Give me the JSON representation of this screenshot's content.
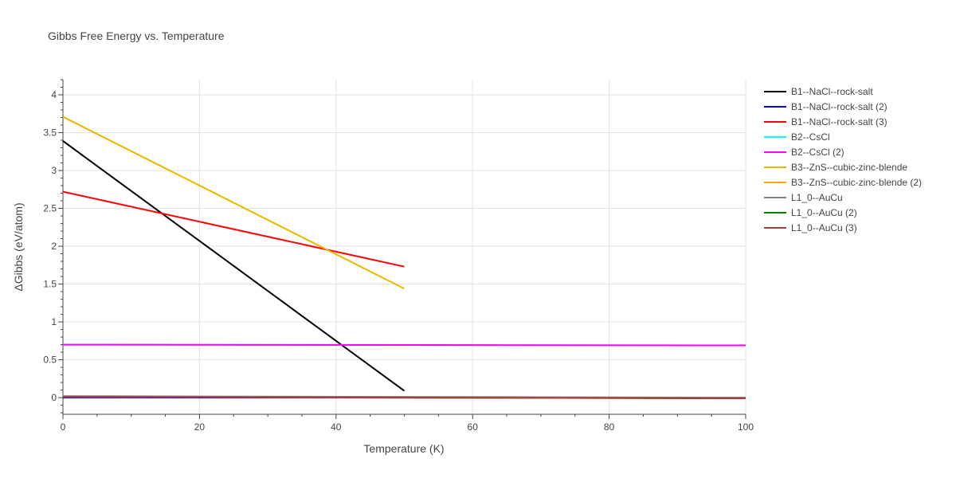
{
  "chart_data": {
    "type": "line",
    "title": "Gibbs Free Energy vs. Temperature",
    "xlabel": "Temperature (K)",
    "ylabel": "ΔGibbs (eV/atom)",
    "xlim": [
      0,
      100
    ],
    "ylim": [
      -0.22,
      4.2
    ],
    "x_ticks": [
      0,
      20,
      40,
      60,
      80,
      100
    ],
    "x_tick_labels": [
      "0",
      "20",
      "40",
      "60",
      "80",
      "100"
    ],
    "y_ticks": [
      0,
      0.5,
      1,
      1.5,
      2,
      2.5,
      3,
      3.5,
      4
    ],
    "y_tick_labels": [
      "0",
      "0.5",
      "1",
      "1.5",
      "2",
      "2.5",
      "3",
      "3.5",
      "4"
    ],
    "grid": true,
    "legend_position": "right",
    "series": [
      {
        "name": "B1--NaCl--rock-salt",
        "color": "#000000",
        "x": [
          0,
          50
        ],
        "y": [
          3.39,
          0.09
        ]
      },
      {
        "name": "B1--NaCl--rock-salt (2)",
        "color": "#0000ff",
        "x": [
          0,
          100
        ],
        "y": [
          0.0,
          0.0
        ]
      },
      {
        "name": "B1--NaCl--rock-salt (3)",
        "color": "#ff0000",
        "x": [
          0,
          50
        ],
        "y": [
          2.72,
          1.73
        ]
      },
      {
        "name": "B2--CsCl",
        "color": "#00ffff",
        "x": [
          0,
          100
        ],
        "y": [
          0.7,
          0.69
        ]
      },
      {
        "name": "B2--CsCl (2)",
        "color": "#ff00ff",
        "x": [
          0,
          100
        ],
        "y": [
          0.7,
          0.69
        ]
      },
      {
        "name": "B3--ZnS--cubic-zinc-blende",
        "color": "#e6b800",
        "x": [
          0,
          50
        ],
        "y": [
          3.71,
          1.44
        ]
      },
      {
        "name": "B3--ZnS--cubic-zinc-blende (2)",
        "color": "#ffa500",
        "x": [
          0,
          100
        ],
        "y": [
          0.01,
          0.0
        ]
      },
      {
        "name": "L1_0--AuCu",
        "color": "#808080",
        "x": [
          0,
          100
        ],
        "y": [
          0.02,
          0.0
        ]
      },
      {
        "name": "L1_0--AuCu (2)",
        "color": "#008000",
        "x": [
          0,
          100
        ],
        "y": [
          0.01,
          -0.01
        ]
      },
      {
        "name": "L1_0--AuCu (3)",
        "color": "#b03a3a",
        "x": [
          0,
          100
        ],
        "y": [
          0.01,
          -0.01
        ]
      }
    ]
  }
}
